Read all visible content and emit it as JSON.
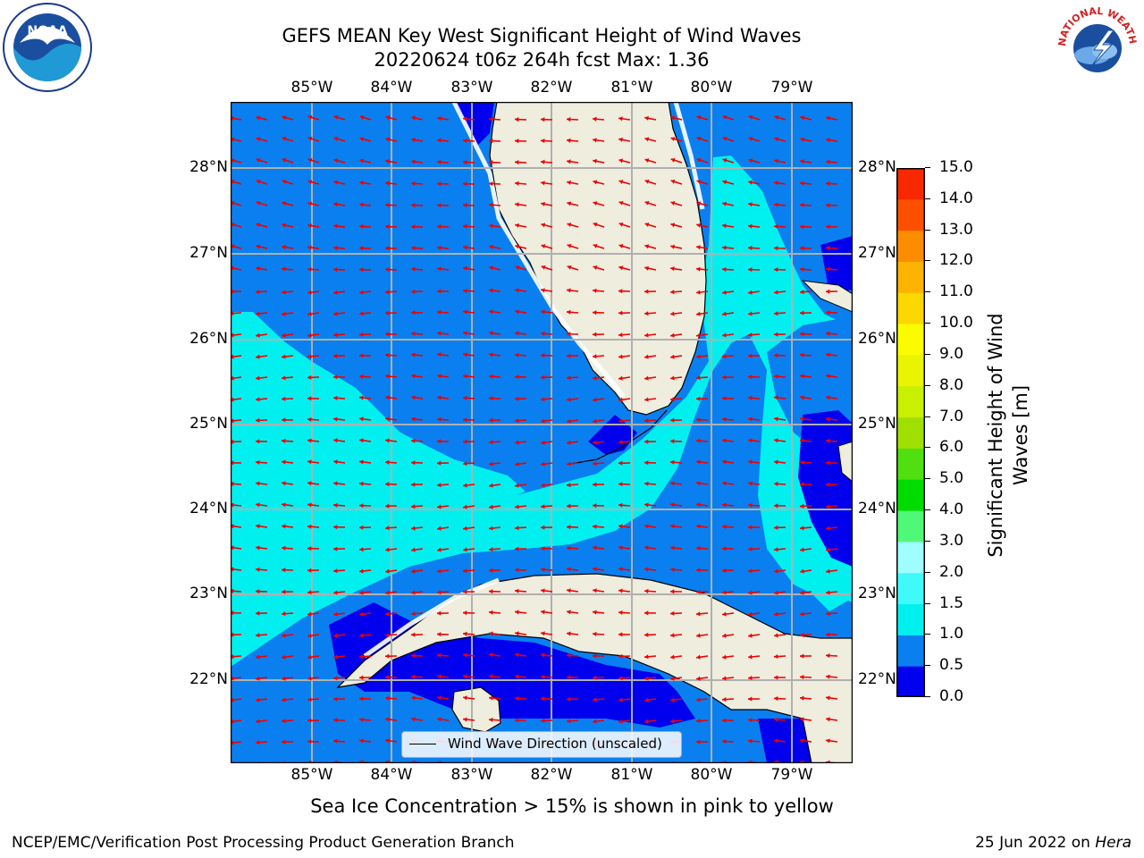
{
  "title_line1": "GEFS MEAN Key West Significant Height of Wind Waves",
  "title_line2": "20220624 t06z 264h fcst   Max: 1.36",
  "lon_labels": [
    "85°W",
    "84°W",
    "83°W",
    "82°W",
    "81°W",
    "80°W",
    "79°W"
  ],
  "lat_labels": [
    "28°N",
    "27°N",
    "26°N",
    "25°N",
    "24°N",
    "23°N",
    "22°N"
  ],
  "colorbar": {
    "label": "Significant Height of Wind Waves [m]",
    "ticks": [
      "0.0",
      "0.5",
      "1.0",
      "1.5",
      "2.0",
      "3.0",
      "4.0",
      "5.0",
      "6.0",
      "7.0",
      "8.0",
      "9.0",
      "10.0",
      "11.0",
      "12.0",
      "13.0",
      "14.0",
      "15.0"
    ],
    "colors": [
      "#0000ee",
      "#0a80f0",
      "#00f0f0",
      "#40fafa",
      "#a0fefe",
      "#50f878",
      "#00dc00",
      "#50e010",
      "#a0e000",
      "#c8f000",
      "#e8f400",
      "#fcfc00",
      "#fcd800",
      "#fcb400",
      "#fc8c00",
      "#fc5000",
      "#f82800",
      "#f00000"
    ]
  },
  "legend_label": "Wind Wave Direction (unscaled)",
  "subtitle": "Sea Ice Concentration > 15% is shown in pink to yellow",
  "footer_left": "NCEP/EMC/Verification Post Processing Product Generation Branch",
  "footer_right_date": "25 Jun 2022 on ",
  "footer_right_host": "Hera",
  "logos": {
    "noaa": "NOAA",
    "nws_top": "NATIONAL WEATHER SERVICE"
  },
  "palette": {
    "land": "#eeedde",
    "deep": "#0a80f0",
    "shallow": "#00f0f0",
    "calm": "#0000ee",
    "arrow": "#ee0000"
  }
}
